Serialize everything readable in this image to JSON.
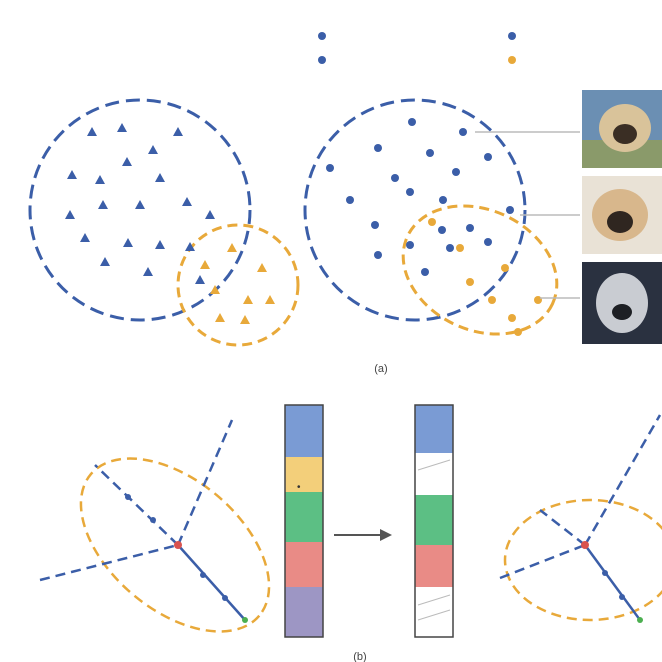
{
  "legend": {
    "items": [
      {
        "label": "",
        "color": "#3b5ea8",
        "shape": "dot"
      },
      {
        "label": "",
        "color": "#3b5ea8",
        "shape": "dot"
      },
      {
        "label": "",
        "color": "#3b5ea8",
        "shape": "dot"
      },
      {
        "label": "",
        "color": "#e8a93a",
        "shape": "dot"
      }
    ]
  },
  "panel_a": {
    "label": "(a)"
  },
  "panel_b": {
    "label": "(b)",
    "middle_text": [
      "",
      "",
      ""
    ]
  },
  "images": [
    {
      "name": "pug-photo-1"
    },
    {
      "name": "pug-photo-2"
    },
    {
      "name": "dog-photo-3"
    }
  ],
  "colors": {
    "blue": "#3b5ea8",
    "orange": "#e8a93a",
    "bar_blue": "#7a9bd4",
    "bar_yellow": "#f3cf7a",
    "bar_green": "#5cbf84",
    "bar_red": "#e98b86",
    "bar_purple": "#9d96c4"
  }
}
